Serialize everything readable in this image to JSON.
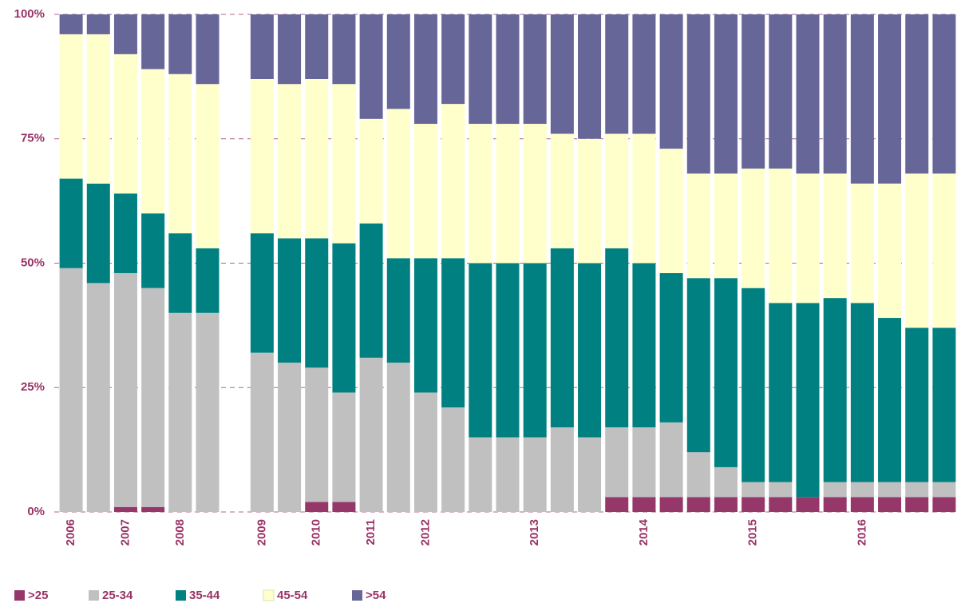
{
  "chart_data": {
    "type": "stacked_bar_100",
    "categories": [
      "2006",
      null,
      "2007",
      null,
      "2008",
      null,
      null,
      "2009",
      null,
      "2010",
      null,
      "2011",
      null,
      "2012",
      null,
      null,
      null,
      "2013",
      null,
      null,
      null,
      "2014",
      null,
      null,
      null,
      "2015",
      null,
      null,
      null,
      "2016",
      null,
      null,
      null
    ],
    "series": [
      {
        "name": ">25",
        "color": "#953768",
        "values": [
          0,
          0,
          1,
          1,
          0,
          0,
          null,
          0,
          0,
          2,
          2,
          0,
          0,
          0,
          0,
          0,
          0,
          0,
          0,
          0,
          3,
          3,
          3,
          3,
          3,
          3,
          3,
          3,
          3,
          3,
          3,
          3,
          3
        ]
      },
      {
        "name": "25-34",
        "color": "#c0c0c0",
        "values": [
          49,
          46,
          47,
          44,
          40,
          40,
          null,
          32,
          30,
          27,
          22,
          31,
          30,
          24,
          21,
          15,
          15,
          15,
          17,
          15,
          14,
          14,
          15,
          9,
          6,
          3,
          3,
          0,
          3,
          3,
          3,
          3,
          3
        ]
      },
      {
        "name": "35-44",
        "color": "#008080",
        "values": [
          18,
          20,
          16,
          15,
          16,
          13,
          null,
          24,
          25,
          26,
          30,
          27,
          21,
          27,
          30,
          35,
          35,
          35,
          36,
          35,
          36,
          33,
          30,
          35,
          38,
          39,
          36,
          39,
          37,
          36,
          33,
          31,
          31
        ]
      },
      {
        "name": "45-54",
        "color": "#ffffcc",
        "values": [
          29,
          30,
          28,
          29,
          32,
          33,
          null,
          31,
          31,
          32,
          32,
          21,
          30,
          27,
          31,
          28,
          28,
          28,
          23,
          25,
          23,
          26,
          25,
          21,
          21,
          24,
          27,
          26,
          25,
          24,
          27,
          31,
          31
        ]
      },
      {
        "name": ">54",
        "color": "#666699",
        "values": [
          4,
          4,
          8,
          11,
          12,
          14,
          null,
          13,
          14,
          13,
          14,
          21,
          19,
          22,
          18,
          22,
          22,
          22,
          24,
          25,
          24,
          24,
          27,
          32,
          32,
          31,
          31,
          32,
          32,
          34,
          34,
          32,
          32
        ]
      }
    ],
    "ylim": [
      0,
      100
    ],
    "yticks": [
      {
        "value": 0,
        "label": "0%"
      },
      {
        "value": 25,
        "label": "25%"
      },
      {
        "value": 50,
        "label": "50%"
      },
      {
        "value": 75,
        "label": "75%"
      },
      {
        "value": 100,
        "label": "100%"
      }
    ],
    "grid": true,
    "legend": "bottom"
  }
}
